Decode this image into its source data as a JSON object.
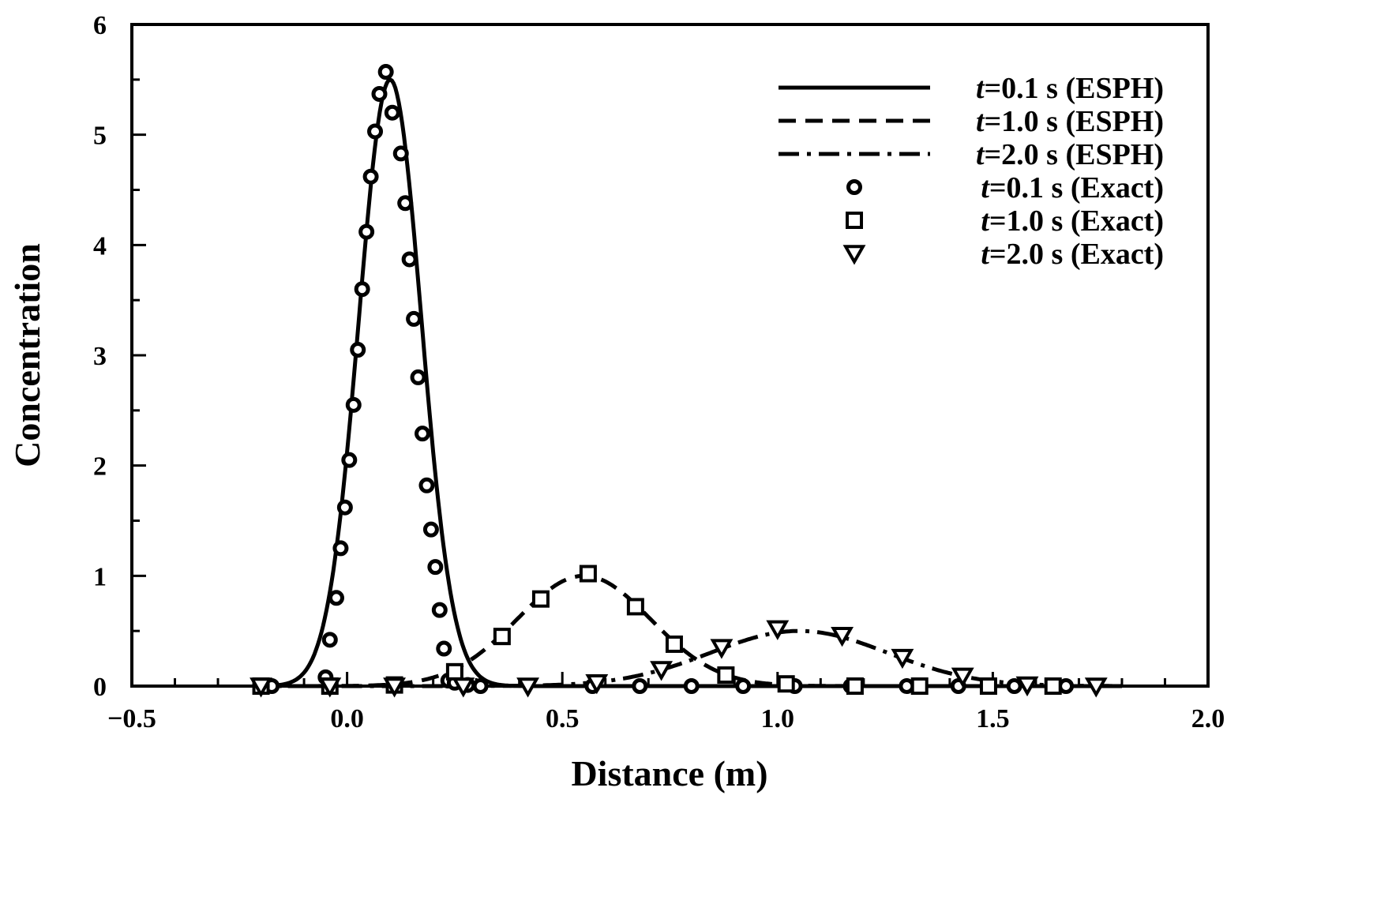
{
  "chart_data": {
    "type": "line",
    "xlabel": "Distance (m)",
    "ylabel": "Concentration",
    "xlim": [
      -0.5,
      2.0
    ],
    "ylim": [
      0,
      6
    ],
    "x_ticks": [
      -0.5,
      0.0,
      0.5,
      1.0,
      1.5,
      2.0
    ],
    "x_tick_labels": [
      "−0.5",
      "0.0",
      "0.5",
      "1.0",
      "1.5",
      "2.0"
    ],
    "x_minor_step": 0.1,
    "y_ticks": [
      0,
      1,
      2,
      3,
      4,
      5,
      6
    ],
    "y_tick_labels": [
      "0",
      "1",
      "2",
      "3",
      "4",
      "5",
      "6"
    ],
    "y_minor_step": 0.5,
    "grid": false,
    "legend_position": "top-right",
    "series": [
      {
        "name": "t=0.1 s (ESPH)",
        "t_prefix": "t",
        "name_rest": "=0.1 s (ESPH)",
        "kind": "line",
        "dash": "solid",
        "color": "#000000",
        "peak": 5.5,
        "center": 0.1,
        "sigma": 0.0725,
        "x_range": [
          -0.2,
          1.8
        ]
      },
      {
        "name": "t=1.0 s (ESPH)",
        "t_prefix": "t",
        "name_rest": "=1.0 s (ESPH)",
        "kind": "line",
        "dash": "dashed",
        "color": "#000000",
        "peak": 1.0,
        "center": 0.55,
        "sigma": 0.155,
        "x_range": [
          -0.2,
          1.8
        ]
      },
      {
        "name": "t=2.0 s (ESPH)",
        "t_prefix": "t",
        "name_rest": "=2.0 s (ESPH)",
        "kind": "line",
        "dash": "dashdot",
        "color": "#000000",
        "peak": 0.5,
        "center": 1.05,
        "sigma": 0.205,
        "x_range": [
          -0.2,
          1.8
        ]
      },
      {
        "name": "t=0.1 s (Exact)",
        "t_prefix": "t",
        "name_rest": "=0.1 s (Exact)",
        "kind": "marker",
        "marker": "circle",
        "color": "#000000",
        "x": [
          -0.2,
          -0.175,
          -0.05,
          -0.04,
          -0.025,
          -0.015,
          -0.005,
          0.005,
          0.015,
          0.025,
          0.035,
          0.045,
          0.055,
          0.065,
          0.075,
          0.09,
          0.105,
          0.125,
          0.135,
          0.145,
          0.155,
          0.165,
          0.175,
          0.185,
          0.195,
          0.205,
          0.215,
          0.225,
          0.235,
          0.25,
          0.28,
          0.31,
          0.57,
          0.68,
          0.8,
          0.92,
          1.04,
          1.17,
          1.3,
          1.42,
          1.55,
          1.67
        ],
        "y": [
          0.0,
          0.0,
          0.08,
          0.42,
          0.8,
          1.25,
          1.62,
          2.05,
          2.55,
          3.05,
          3.6,
          4.12,
          4.62,
          5.03,
          5.37,
          5.57,
          5.2,
          4.83,
          4.38,
          3.87,
          3.33,
          2.8,
          2.29,
          1.82,
          1.42,
          1.08,
          0.69,
          0.34,
          0.05,
          0.03,
          0.01,
          0.0,
          0.0,
          0.0,
          0.0,
          0.0,
          0.0,
          0.0,
          0.0,
          0.0,
          0.0,
          0.0
        ]
      },
      {
        "name": "t=1.0 s (Exact)",
        "t_prefix": "t",
        "name_rest": "=1.0 s (Exact)",
        "kind": "marker",
        "marker": "square",
        "color": "#000000",
        "x": [
          -0.2,
          -0.04,
          0.11,
          0.25,
          0.36,
          0.45,
          0.56,
          0.67,
          0.76,
          0.88,
          1.02,
          1.18,
          1.33,
          1.49,
          1.64
        ],
        "y": [
          0.0,
          0.0,
          0.01,
          0.13,
          0.45,
          0.79,
          1.02,
          0.72,
          0.38,
          0.1,
          0.02,
          0.0,
          0.0,
          0.0,
          0.0
        ]
      },
      {
        "name": "t=2.0 s (Exact)",
        "t_prefix": "t",
        "name_rest": "=2.0 s (Exact)",
        "kind": "marker",
        "marker": "triangle-down",
        "color": "#000000",
        "x": [
          -0.2,
          -0.04,
          0.11,
          0.27,
          0.42,
          0.58,
          0.73,
          0.87,
          1.0,
          1.15,
          1.29,
          1.43,
          1.58,
          1.74
        ],
        "y": [
          0.0,
          0.0,
          0.0,
          0.0,
          0.0,
          0.03,
          0.15,
          0.35,
          0.52,
          0.46,
          0.26,
          0.09,
          0.01,
          0.0
        ]
      }
    ]
  }
}
